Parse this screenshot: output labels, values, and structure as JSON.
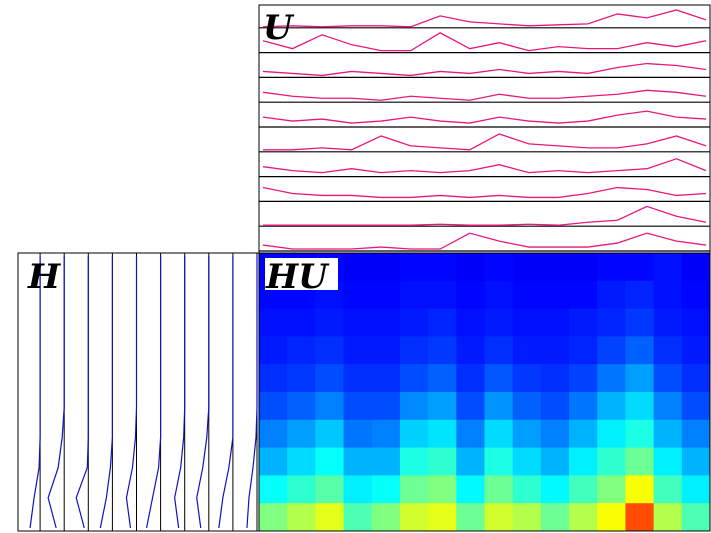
{
  "panels": {
    "U": {
      "label": "U",
      "color": "#e8177d",
      "traces": [
        [
          0.05,
          0.1,
          0.05,
          0.1,
          0.1,
          0.05,
          0.6,
          0.3,
          0.2,
          0.1,
          0.15,
          0.2,
          0.7,
          0.5,
          0.9,
          0.4
        ],
        [
          0.6,
          0.2,
          0.9,
          0.4,
          0.1,
          0.1,
          1,
          0.2,
          0.5,
          0.1,
          0.3,
          0.2,
          0.2,
          0.5,
          0.3,
          0.6
        ],
        [
          0.3,
          0.2,
          0.1,
          0.3,
          0.2,
          0.1,
          0.3,
          0.2,
          0.4,
          0.2,
          0.3,
          0.2,
          0.5,
          0.7,
          0.6,
          0.4
        ],
        [
          0.5,
          0.3,
          0.2,
          0.2,
          0.1,
          0.3,
          0.2,
          0.1,
          0.4,
          0.2,
          0.2,
          0.3,
          0.4,
          0.6,
          0.5,
          0.3
        ],
        [
          0.5,
          0.3,
          0.4,
          0.2,
          0.3,
          0.5,
          0.3,
          0.2,
          0.5,
          0.3,
          0.2,
          0.3,
          0.6,
          0.8,
          0.5,
          0.4
        ],
        [
          0.1,
          0.1,
          0.2,
          0.1,
          0.8,
          0.3,
          0.2,
          0.1,
          0.9,
          0.4,
          0.3,
          0.2,
          0.2,
          0.4,
          0.8,
          0.3
        ],
        [
          0.5,
          0.3,
          0.2,
          0.4,
          0.2,
          0.3,
          0.2,
          0.3,
          0.6,
          0.2,
          0.3,
          0.2,
          0.3,
          0.4,
          0.9,
          0.3
        ],
        [
          0.7,
          0.4,
          0.3,
          0.3,
          0.2,
          0.2,
          0.3,
          0.2,
          0.3,
          0.2,
          0.2,
          0.4,
          0.7,
          0.6,
          0.3,
          0.4
        ],
        [
          0.05,
          0.05,
          0.05,
          0.05,
          0.05,
          0.05,
          0.1,
          0.05,
          0.05,
          0.1,
          0.05,
          0.2,
          0.3,
          1,
          0.5,
          0.2
        ],
        [
          0.3,
          0.1,
          0.1,
          0.1,
          0.2,
          0.1,
          0.1,
          0.9,
          0.5,
          0.2,
          0.2,
          0.2,
          0.4,
          0.9,
          0.5,
          0.3
        ]
      ]
    },
    "H": {
      "label": "H",
      "color": "#1010c8",
      "traces": [
        [
          0,
          0,
          0,
          0,
          0,
          0,
          0,
          0.05,
          0.3,
          0.5
        ],
        [
          0,
          0,
          0,
          0,
          0,
          0,
          0.1,
          0.3,
          0.8,
          0.4
        ],
        [
          0,
          0,
          0,
          0,
          0,
          0,
          0,
          0.05,
          0.6,
          0.2
        ],
        [
          0,
          0,
          0,
          0,
          0,
          0,
          0,
          0.1,
          0.3,
          0.6
        ],
        [
          0,
          0,
          0,
          0,
          0,
          0,
          0.05,
          0.2,
          0.5,
          0.3
        ],
        [
          0,
          0,
          0,
          0,
          0,
          0,
          0,
          0.1,
          0.4,
          0.7
        ],
        [
          0,
          0,
          0,
          0,
          0,
          0,
          0.05,
          0.2,
          0.5,
          0.3
        ],
        [
          0,
          0,
          0,
          0,
          0,
          0,
          0.1,
          0.3,
          0.6,
          0.4
        ],
        [
          0,
          0,
          0,
          0,
          0,
          0,
          0,
          0.2,
          0.5,
          0.7
        ],
        [
          0,
          0,
          0,
          0,
          0,
          0,
          0.05,
          0.2,
          0.4,
          0.5
        ]
      ]
    },
    "HU": {
      "label": "HU",
      "values": [
        [
          0.12,
          0.12,
          0.13,
          0.12,
          0.12,
          0.13,
          0.13,
          0.12,
          0.13,
          0.12,
          0.12,
          0.12,
          0.13,
          0.13,
          0.14,
          0.12
        ],
        [
          0.13,
          0.13,
          0.14,
          0.13,
          0.13,
          0.14,
          0.14,
          0.13,
          0.14,
          0.13,
          0.13,
          0.13,
          0.15,
          0.16,
          0.14,
          0.13
        ],
        [
          0.14,
          0.14,
          0.15,
          0.14,
          0.14,
          0.15,
          0.16,
          0.14,
          0.15,
          0.14,
          0.14,
          0.15,
          0.16,
          0.18,
          0.15,
          0.14
        ],
        [
          0.15,
          0.16,
          0.17,
          0.15,
          0.15,
          0.17,
          0.18,
          0.15,
          0.17,
          0.15,
          0.15,
          0.16,
          0.19,
          0.22,
          0.17,
          0.15
        ],
        [
          0.17,
          0.18,
          0.2,
          0.17,
          0.17,
          0.2,
          0.22,
          0.17,
          0.21,
          0.18,
          0.17,
          0.19,
          0.24,
          0.28,
          0.2,
          0.17
        ],
        [
          0.2,
          0.22,
          0.25,
          0.2,
          0.2,
          0.26,
          0.28,
          0.2,
          0.27,
          0.22,
          0.2,
          0.24,
          0.3,
          0.34,
          0.25,
          0.2
        ],
        [
          0.25,
          0.28,
          0.32,
          0.24,
          0.25,
          0.33,
          0.35,
          0.25,
          0.34,
          0.28,
          0.25,
          0.3,
          0.36,
          0.4,
          0.3,
          0.25
        ],
        [
          0.3,
          0.34,
          0.38,
          0.3,
          0.3,
          0.4,
          0.42,
          0.3,
          0.4,
          0.34,
          0.3,
          0.36,
          0.42,
          0.48,
          0.36,
          0.3
        ],
        [
          0.38,
          0.42,
          0.46,
          0.36,
          0.38,
          0.48,
          0.5,
          0.37,
          0.48,
          0.42,
          0.37,
          0.44,
          0.5,
          0.62,
          0.44,
          0.36
        ],
        [
          0.5,
          0.55,
          0.6,
          0.45,
          0.5,
          0.58,
          0.6,
          0.48,
          0.58,
          0.55,
          0.48,
          0.55,
          0.62,
          0.8,
          0.55,
          0.45
        ]
      ]
    }
  }
}
